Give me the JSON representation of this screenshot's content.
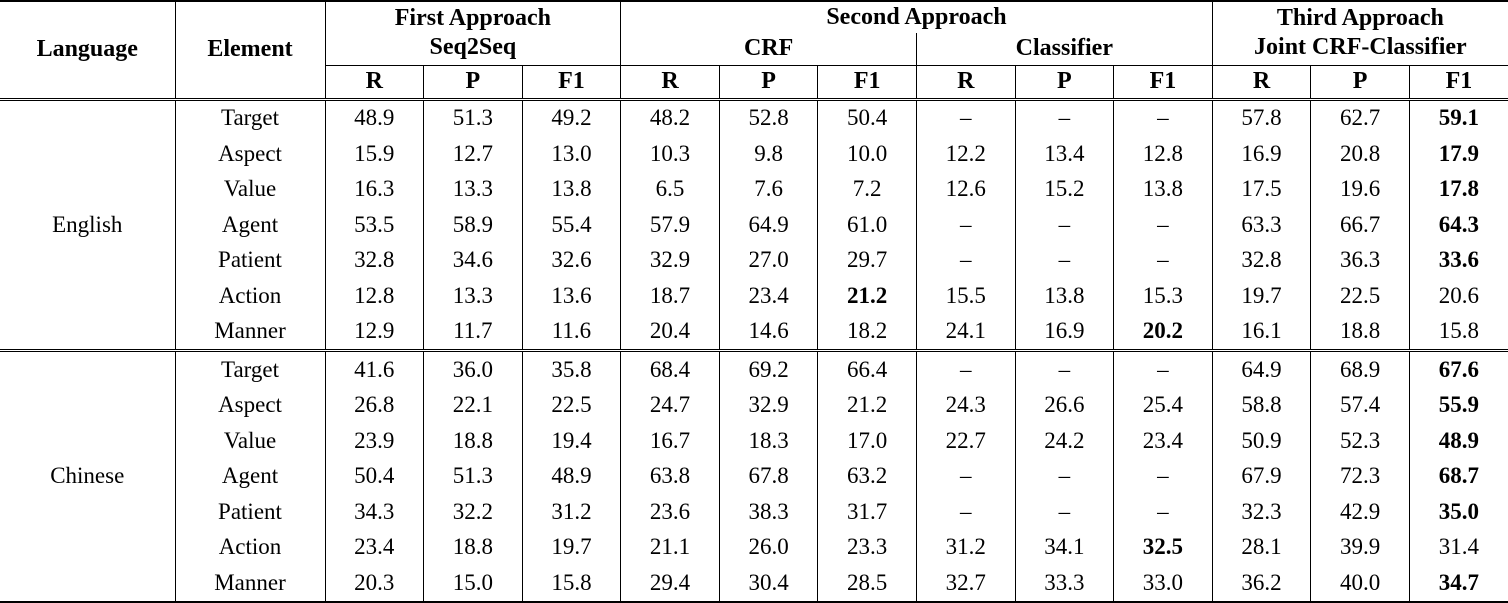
{
  "table": {
    "headers": {
      "language": "Language",
      "element": "Element",
      "approach1_title": "First Approach",
      "approach1_subtitle": "Seq2Seq",
      "approach2_title": "Second Approach",
      "approach2_sub1": "CRF",
      "approach2_sub2": "Classifier",
      "approach3_title": "Third Approach",
      "approach3_subtitle": "Joint CRF-Classifier",
      "metrics": [
        "R",
        "P",
        "F1"
      ]
    },
    "language_blocks": [
      {
        "language": "English",
        "rows": [
          {
            "element": "Target",
            "values": [
              "48.9",
              "51.3",
              "49.2",
              "48.2",
              "52.8",
              "50.4",
              "–",
              "–",
              "–",
              "57.8",
              "62.7",
              "59.1"
            ],
            "bold": [
              11
            ]
          },
          {
            "element": "Aspect",
            "values": [
              "15.9",
              "12.7",
              "13.0",
              "10.3",
              "9.8",
              "10.0",
              "12.2",
              "13.4",
              "12.8",
              "16.9",
              "20.8",
              "17.9"
            ],
            "bold": [
              11
            ]
          },
          {
            "element": "Value",
            "values": [
              "16.3",
              "13.3",
              "13.8",
              "6.5",
              "7.6",
              "7.2",
              "12.6",
              "15.2",
              "13.8",
              "17.5",
              "19.6",
              "17.8"
            ],
            "bold": [
              11
            ]
          },
          {
            "element": "Agent",
            "values": [
              "53.5",
              "58.9",
              "55.4",
              "57.9",
              "64.9",
              "61.0",
              "–",
              "–",
              "–",
              "63.3",
              "66.7",
              "64.3"
            ],
            "bold": [
              11
            ]
          },
          {
            "element": "Patient",
            "values": [
              "32.8",
              "34.6",
              "32.6",
              "32.9",
              "27.0",
              "29.7",
              "–",
              "–",
              "–",
              "32.8",
              "36.3",
              "33.6"
            ],
            "bold": [
              11
            ]
          },
          {
            "element": "Action",
            "values": [
              "12.8",
              "13.3",
              "13.6",
              "18.7",
              "23.4",
              "21.2",
              "15.5",
              "13.8",
              "15.3",
              "19.7",
              "22.5",
              "20.6"
            ],
            "bold": [
              5
            ]
          },
          {
            "element": "Manner",
            "values": [
              "12.9",
              "11.7",
              "11.6",
              "20.4",
              "14.6",
              "18.2",
              "24.1",
              "16.9",
              "20.2",
              "16.1",
              "18.8",
              "15.8"
            ],
            "bold": [
              8
            ]
          }
        ]
      },
      {
        "language": "Chinese",
        "rows": [
          {
            "element": "Target",
            "values": [
              "41.6",
              "36.0",
              "35.8",
              "68.4",
              "69.2",
              "66.4",
              "–",
              "–",
              "–",
              "64.9",
              "68.9",
              "67.6"
            ],
            "bold": [
              11
            ]
          },
          {
            "element": "Aspect",
            "values": [
              "26.8",
              "22.1",
              "22.5",
              "24.7",
              "32.9",
              "21.2",
              "24.3",
              "26.6",
              "25.4",
              "58.8",
              "57.4",
              "55.9"
            ],
            "bold": [
              11
            ]
          },
          {
            "element": "Value",
            "values": [
              "23.9",
              "18.8",
              "19.4",
              "16.7",
              "18.3",
              "17.0",
              "22.7",
              "24.2",
              "23.4",
              "50.9",
              "52.3",
              "48.9"
            ],
            "bold": [
              11
            ]
          },
          {
            "element": "Agent",
            "values": [
              "50.4",
              "51.3",
              "48.9",
              "63.8",
              "67.8",
              "63.2",
              "–",
              "–",
              "–",
              "67.9",
              "72.3",
              "68.7"
            ],
            "bold": [
              11
            ]
          },
          {
            "element": "Patient",
            "values": [
              "34.3",
              "32.2",
              "31.2",
              "23.6",
              "38.3",
              "31.7",
              "–",
              "–",
              "–",
              "32.3",
              "42.9",
              "35.0"
            ],
            "bold": [
              11
            ]
          },
          {
            "element": "Action",
            "values": [
              "23.4",
              "18.8",
              "19.7",
              "21.1",
              "26.0",
              "23.3",
              "31.2",
              "34.1",
              "32.5",
              "28.1",
              "39.9",
              "31.4"
            ],
            "bold": [
              8
            ]
          },
          {
            "element": "Manner",
            "values": [
              "20.3",
              "15.0",
              "15.8",
              "29.4",
              "30.4",
              "28.5",
              "32.7",
              "33.3",
              "33.0",
              "36.2",
              "40.0",
              "34.7"
            ],
            "bold": [
              11
            ]
          }
        ]
      }
    ]
  }
}
